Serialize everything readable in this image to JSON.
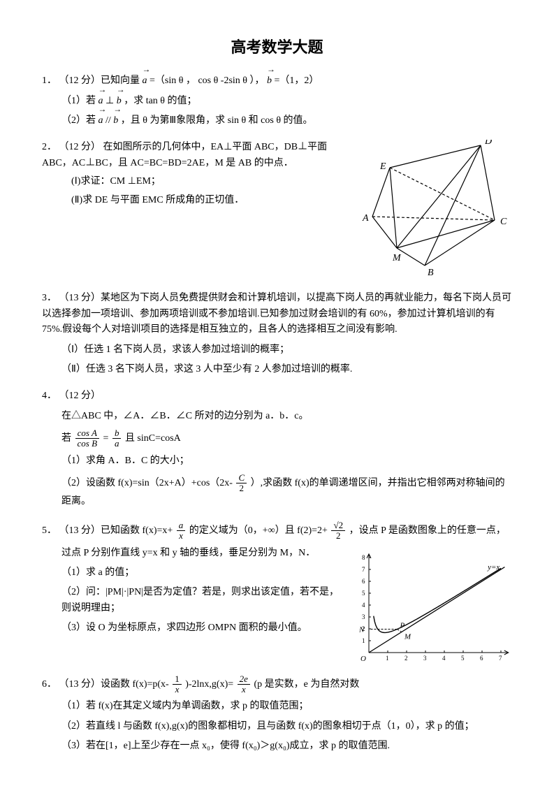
{
  "title": "高考数学大题",
  "problems": {
    "p1": {
      "num": "1．",
      "head": "（12 分）已知向量",
      "a": "a",
      "eqa": " =（sin θ ， cos θ -2sin θ ）， ",
      "b": "b",
      "eqb": " =（1，2）",
      "s1a": "（1）若",
      "s1mid": " ⊥ ",
      "s1b": "，求 tan θ 的值；",
      "s2a": "（2）若",
      "s2mid": " // ",
      "s2b": "，且 θ 为第Ⅲ象限角，求 sin θ 和 cos θ 的值。"
    },
    "p2": {
      "num": "2．",
      "head": "（12 分） 在如图所示的几何体中，EA⊥平面 ABC，DB⊥平面 ABC，AC⊥BC，且 AC=BC=BD=2AE，M 是 AB 的中点．",
      "s1": "(Ⅰ)求证：CM ⊥EM；",
      "s2": "(Ⅱ)求 DE 与平面 EMC 所成角的正切值．",
      "figure": {
        "labels": {
          "A": "A",
          "B": "B",
          "C": "C",
          "D": "D",
          "E": "E",
          "M": "M"
        },
        "stroke": "#000000",
        "line_width": 1.2,
        "dash": "4,3",
        "points": {
          "A": [
            20,
            110
          ],
          "M": [
            55,
            155
          ],
          "B": [
            95,
            180
          ],
          "C": [
            195,
            115
          ],
          "D": [
            175,
            8
          ],
          "E": [
            45,
            40
          ]
        }
      }
    },
    "p3": {
      "num": "3．",
      "head": "（13 分）某地区为下岗人员免费提供财会和计算机培训，以提高下岗人员的再就业能力，每名下岗人员可以选择参加一项培训、参加两项培训或不参加培训.已知参加过财会培训的有 60%，参加过计算机培训的有 75%.假设每个人对培训项目的选择是相互独立的，且各人的选择相互之间没有影响.",
      "s1": "（Ⅰ）任选 1 名下岗人员，求该人参加过培训的概率；",
      "s2": "（Ⅱ）任选 3 名下岗人员，求这 3 人中至少有 2 人参加过培训的概率."
    },
    "p4": {
      "num": "4．",
      "head": "（12 分）",
      "l1": "在△ABC 中，∠A．∠B．∠C 所对的边分别为 a．b．c。",
      "l2a": "若 ",
      "frac1_num": "cos A",
      "frac1_den": "cos B",
      "eq": " = ",
      "frac2_num": "b",
      "frac2_den": "a",
      "l2b": " 且 sinC=cosA",
      "s1": "（1）求角 A．B．C 的大小；",
      "s2a": "（2）设函数 f(x)=sin（2x+A）+cos（2x- ",
      "frac3_num": "C",
      "frac3_den": "2",
      "s2b": " ）,求函数 f(x)的单调递增区间，并指出它相邻两对称轴间的距离。"
    },
    "p5": {
      "num": "5．",
      "heada": "（13 分）已知函数 f(x)=x+ ",
      "frac1_num": "a",
      "frac1_den": "x",
      "headb": " 的定义域为（0，+∞）且 f(2)=2+ ",
      "frac2_num": "√2",
      "frac2_den": "2",
      "headc": " ，设点 P 是函数图象上的任意一点，",
      "l1": "过点 P 分别作直线 y=x 和 y 轴的垂线，垂足分别为 M，N．",
      "s1": "（1）求 a 的值；",
      "s2": "（2）问：|PM|·|PN|是否为定值？若是，则求出该定值，若不是，则说明理由；",
      "s3": "（3）设 O 为坐标原点，求四边形 OMPN 面积的最小值。",
      "figure": {
        "stroke": "#000000",
        "axis_color": "#000000",
        "curve_color": "#000000",
        "line_yx_label": "y=x",
        "labels": {
          "N": "N",
          "P": "P",
          "M": "M",
          "O": "O"
        },
        "xticks": [
          "1",
          "2",
          "3",
          "4",
          "5",
          "6",
          "7"
        ],
        "yticks": [
          "1",
          "2",
          "3",
          "4",
          "5",
          "6",
          "7",
          "8"
        ]
      }
    },
    "p6": {
      "num": "6．",
      "heada": "（13 分）设函数 f(x)=p(x- ",
      "frac1_num": "1",
      "frac1_den": "x",
      "headb": " )-2lnx,g(x)= ",
      "frac2_num": "2e",
      "frac2_den": "x",
      "headc": " (p 是实数，e 为自然对数",
      "s1": "（1）若 f(x)在其定义域内为单调函数，求 p 的取值范围；",
      "s2": "（2）若直线 l 与函数 f(x),g(x)的图象都相切，且与函数 f(x)的图象相切于点（1，0），求 p 的值；",
      "s3": "（3）若在[1，e]上至少存在一点 x₀，使得 f(x₀)＞g(x₀)成立，求 p 的取值范围."
    }
  }
}
